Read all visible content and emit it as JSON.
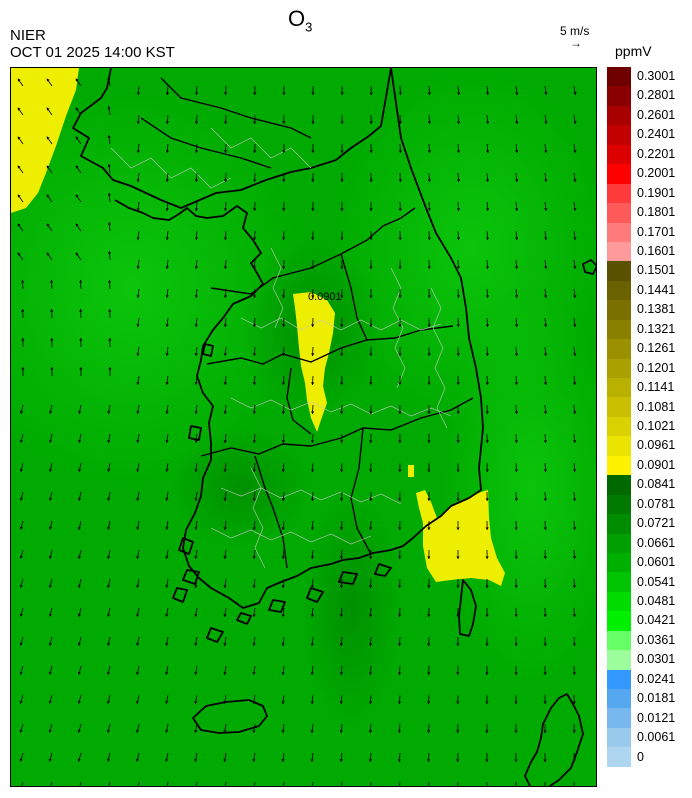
{
  "header": {
    "title_main": "O",
    "title_sub": "3",
    "agency": "NIER",
    "timestamp": "OCT 01 2025 14:00 KST",
    "wind_reference": "5 m/s",
    "wind_arrow_glyph": "→",
    "unit": "ppmV"
  },
  "legend": {
    "bins": [
      {
        "label": "0.3001",
        "color": "#6e0000"
      },
      {
        "label": "0.2801",
        "color": "#8a0000"
      },
      {
        "label": "0.2601",
        "color": "#a80000"
      },
      {
        "label": "0.2401",
        "color": "#c20000"
      },
      {
        "label": "0.2201",
        "color": "#dc0000"
      },
      {
        "label": "0.2001",
        "color": "#ff0000"
      },
      {
        "label": "0.1901",
        "color": "#ff3a3a"
      },
      {
        "label": "0.1801",
        "color": "#ff5a5a"
      },
      {
        "label": "0.1701",
        "color": "#ff7a7a"
      },
      {
        "label": "0.1601",
        "color": "#ff9a9a"
      },
      {
        "label": "0.1501",
        "color": "#5a5200"
      },
      {
        "label": "0.1441",
        "color": "#6a6200"
      },
      {
        "label": "0.1381",
        "color": "#7a7000"
      },
      {
        "label": "0.1321",
        "color": "#8a8000"
      },
      {
        "label": "0.1261",
        "color": "#9a9000"
      },
      {
        "label": "0.1201",
        "color": "#aaa000"
      },
      {
        "label": "0.1141",
        "color": "#bab000"
      },
      {
        "label": "0.1081",
        "color": "#cac000"
      },
      {
        "label": "0.1021",
        "color": "#dad200"
      },
      {
        "label": "0.0961",
        "color": "#eae400"
      },
      {
        "label": "0.0901",
        "color": "#fff200"
      },
      {
        "label": "0.0841",
        "color": "#006a00"
      },
      {
        "label": "0.0781",
        "color": "#007a00"
      },
      {
        "label": "0.0721",
        "color": "#008c00"
      },
      {
        "label": "0.0661",
        "color": "#009e00"
      },
      {
        "label": "0.0601",
        "color": "#00b000"
      },
      {
        "label": "0.0541",
        "color": "#00c400"
      },
      {
        "label": "0.0481",
        "color": "#00dc00"
      },
      {
        "label": "0.0421",
        "color": "#00f000"
      },
      {
        "label": "0.0361",
        "color": "#66ff66"
      },
      {
        "label": "0.0301",
        "color": "#9cff9c"
      },
      {
        "label": "0.0241",
        "color": "#3399ff"
      },
      {
        "label": "0.0181",
        "color": "#55a8f0"
      },
      {
        "label": "0.0121",
        "color": "#77b9ee"
      },
      {
        "label": "0.0061",
        "color": "#99caec"
      },
      {
        "label": "0",
        "color": "#aed6f0"
      }
    ]
  },
  "map": {
    "base_color": "#00aa00",
    "highlight_color": "#eeee00",
    "coast_color": "#000000",
    "district_color": "#c8c8c8",
    "wind_color": "#000000",
    "high_ozone_label": "0.0901"
  }
}
